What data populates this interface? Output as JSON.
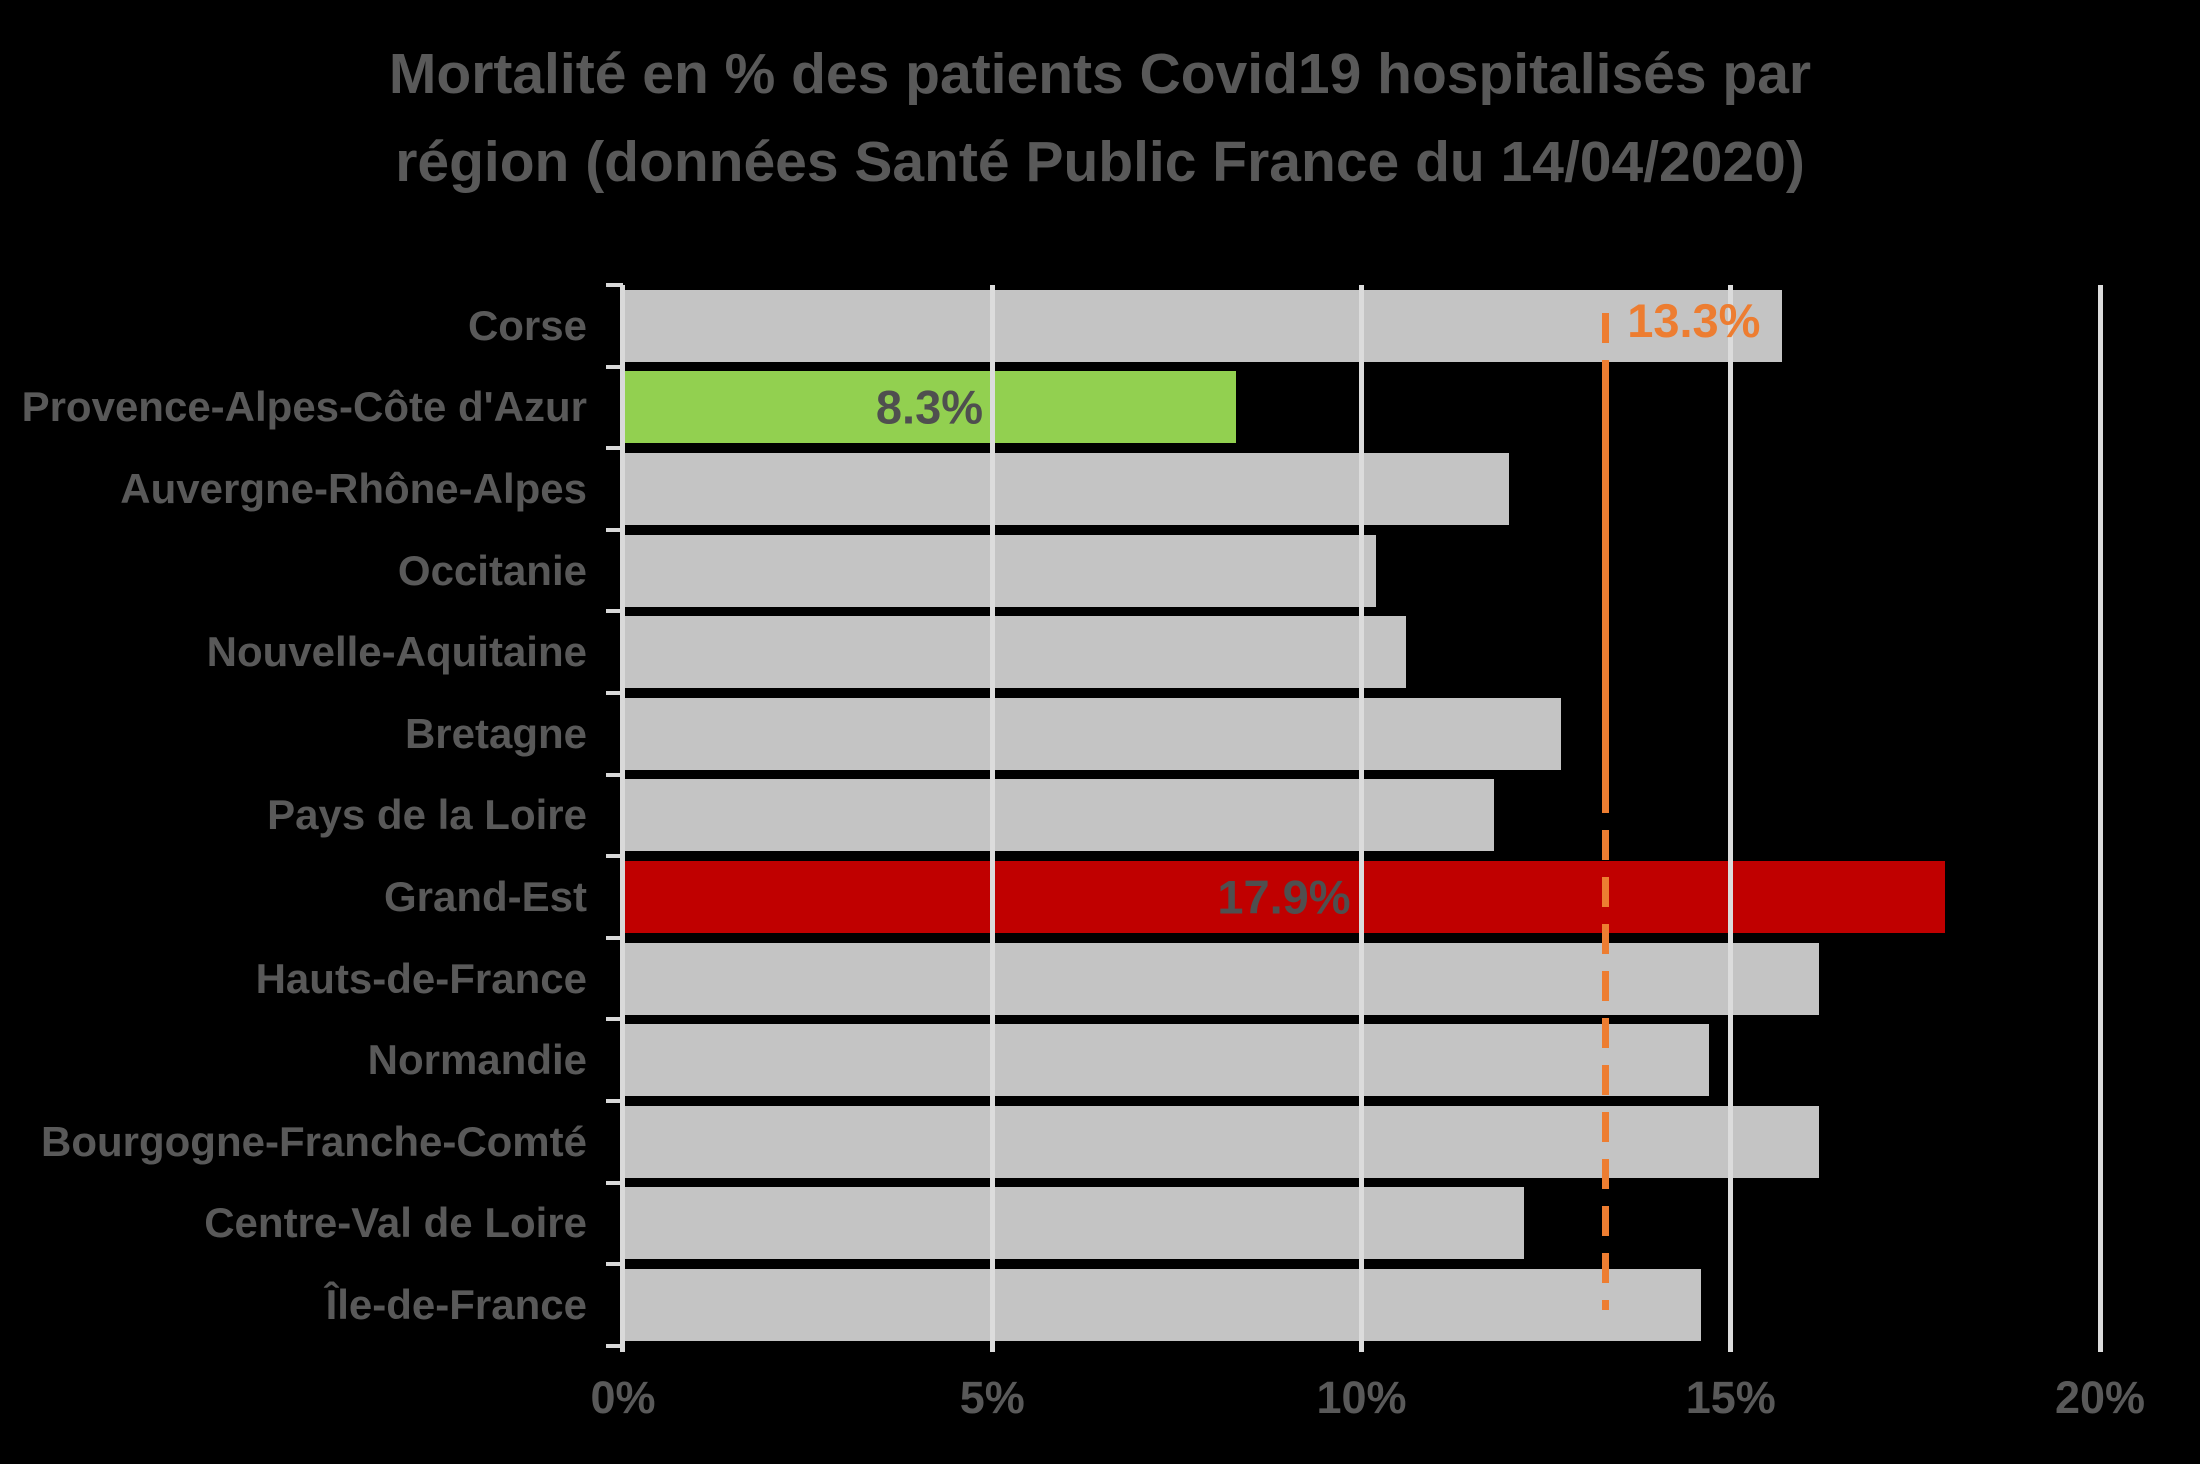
{
  "title": {
    "line1": "Mortalité en % des patients Covid19 hospitalisés par",
    "line2": "région (données Santé Public France du 14/04/2020)"
  },
  "colors": {
    "background": "#000000",
    "bar_default": "#c4c4c4",
    "bar_highlight_low": "#92D050",
    "bar_highlight_high": "#C00000",
    "reference_line": "#ED7D31",
    "gridline": "#dcdcdc",
    "axis": "#d9d9d9",
    "text": "#595959",
    "value_label_text": "#4f4f4f"
  },
  "chart_data": {
    "type": "bar",
    "orientation": "horizontal",
    "title": "Mortalité en % des patients Covid19 hospitalisés par région (données Santé Public France du 14/04/2020)",
    "categories": [
      "Corse",
      "Provence-Alpes-Côte d'Azur",
      "Auvergne-Rhône-Alpes",
      "Occitanie",
      "Nouvelle-Aquitaine",
      "Bretagne",
      "Pays de la Loire",
      "Grand-Est",
      "Hauts-de-France",
      "Normandie",
      "Bourgogne-Franche-Comté",
      "Centre-Val de Loire",
      "Île-de-France"
    ],
    "values": [
      15.7,
      8.3,
      12.0,
      10.2,
      10.6,
      12.7,
      11.8,
      17.9,
      16.2,
      14.7,
      16.2,
      12.2,
      14.6
    ],
    "bar_color_keys": [
      "gray",
      "green",
      "gray",
      "gray",
      "gray",
      "gray",
      "gray",
      "red",
      "gray",
      "gray",
      "gray",
      "gray",
      "gray"
    ],
    "data_labels": [
      {
        "index": 1,
        "text": "8.3%"
      },
      {
        "index": 7,
        "text": "17.9%"
      }
    ],
    "reference_line": {
      "value": 13.3,
      "label": "13.3%",
      "style": "dashed",
      "color": "#ED7D31"
    },
    "x_axis": {
      "min": 0,
      "max": 20,
      "tick_values": [
        0,
        5,
        10,
        15,
        20
      ],
      "tick_labels": [
        "0%",
        "5%",
        "10%",
        "15%",
        "20%"
      ],
      "gridlines": true
    },
    "legend": null
  }
}
